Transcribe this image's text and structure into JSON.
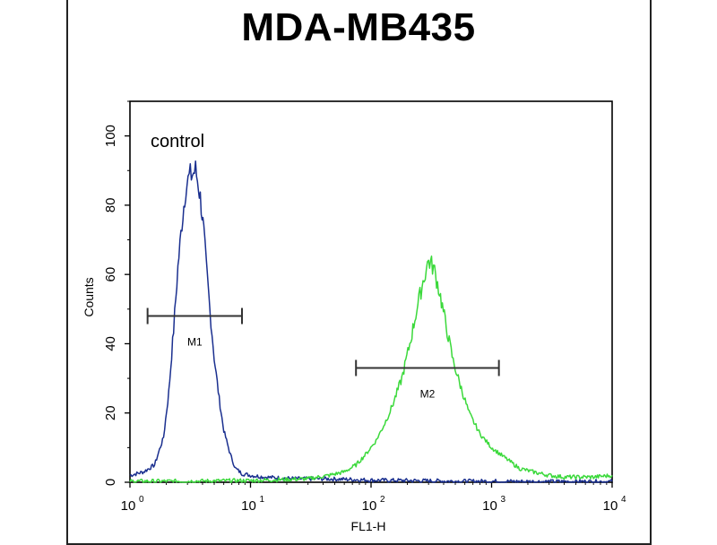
{
  "chart_data": {
    "type": "line",
    "title": "MDA-MB435",
    "xlabel": "FL1-H",
    "ylabel": "Counts",
    "x_scale": "log",
    "xlim": [
      1,
      10000
    ],
    "ylim": [
      0,
      110
    ],
    "x_ticks": [
      {
        "value": 1,
        "base": "10",
        "exp": "0"
      },
      {
        "value": 10,
        "base": "10",
        "exp": "1"
      },
      {
        "value": 100,
        "base": "10",
        "exp": "2"
      },
      {
        "value": 1000,
        "base": "10",
        "exp": "3"
      },
      {
        "value": 10000,
        "base": "10",
        "exp": "4"
      }
    ],
    "y_ticks": [
      0,
      20,
      40,
      60,
      80,
      100
    ],
    "grid": false,
    "series": [
      {
        "color": "#1a2f8f",
        "x": [
          1.0,
          1.3,
          1.6,
          1.9,
          2.1,
          2.3,
          2.5,
          2.7,
          2.9,
          3.1,
          3.3,
          3.5,
          3.7,
          3.9,
          4.1,
          4.3,
          4.6,
          5.0,
          5.5,
          6.0,
          6.8,
          7.5,
          8.5,
          10,
          13,
          18,
          25,
          40,
          70,
          100,
          200,
          500,
          1000,
          2000,
          5000,
          10000
        ],
        "y": [
          2,
          3,
          5,
          13,
          26,
          44,
          62,
          75,
          85,
          88,
          89,
          90,
          86,
          80,
          72,
          62,
          50,
          36,
          24,
          15,
          8,
          4,
          2.5,
          2,
          1.5,
          1.2,
          1,
          1,
          0.8,
          0.6,
          0.5,
          0.3,
          0.3,
          0.2,
          0.2,
          0.2
        ]
      },
      {
        "color": "#3bd93b",
        "x": [
          1.0,
          3,
          10,
          20,
          30,
          45,
          60,
          75,
          90,
          110,
          130,
          150,
          180,
          210,
          240,
          270,
          300,
          330,
          370,
          420,
          480,
          550,
          650,
          800,
          1000,
          1300,
          1700,
          2200,
          3000,
          4000,
          5500,
          7000,
          10000
        ],
        "y": [
          0.3,
          0.3,
          0.5,
          0.8,
          1,
          2,
          3,
          5,
          8,
          12,
          17,
          22,
          30,
          40,
          50,
          58,
          64,
          62,
          55,
          45,
          35,
          28,
          20,
          14,
          10,
          7,
          4,
          3,
          2,
          1.5,
          1.5,
          1.5,
          2
        ]
      }
    ],
    "annotations": {
      "control_label": "control",
      "markers": [
        {
          "label": "M1",
          "x_start": 1.4,
          "x_end": 8.5,
          "y": 48
        },
        {
          "label": "M2",
          "x_start": 75,
          "x_end": 1150,
          "y": 33
        }
      ]
    }
  }
}
